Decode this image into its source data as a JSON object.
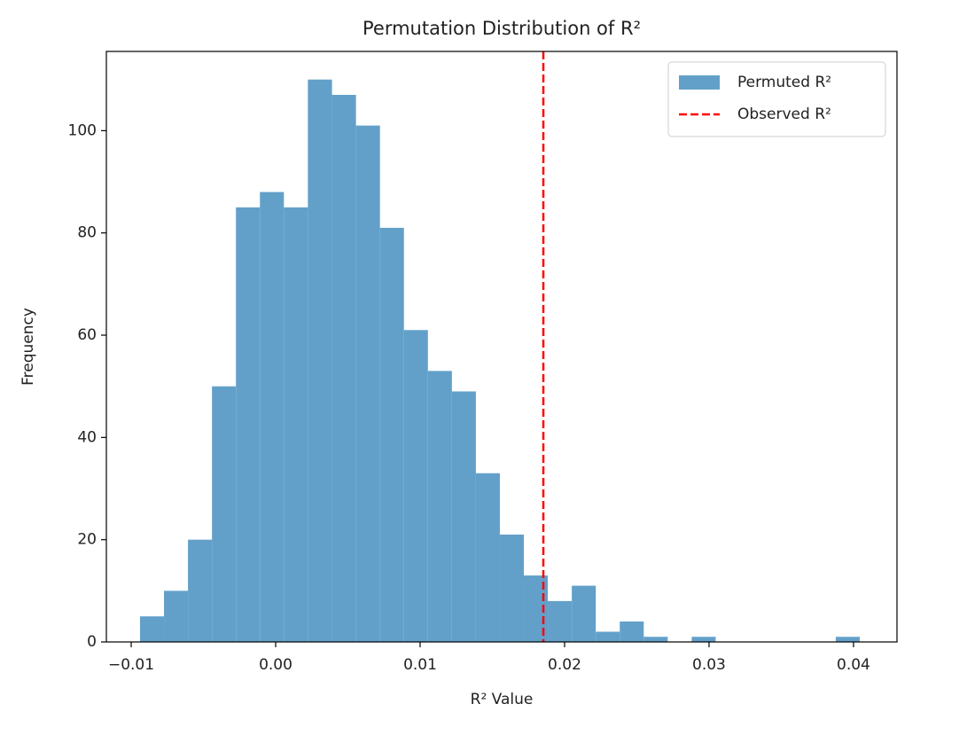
{
  "chart_data": {
    "type": "histogram",
    "title": "Permutation Distribution of R²",
    "xlabel": "R² Value",
    "ylabel": "Frequency",
    "bins": [
      -0.00939,
      -0.00773,
      -0.00607,
      -0.00441,
      -0.00275,
      -0.00109,
      0.00057,
      0.00223,
      0.0039,
      0.00556,
      0.00722,
      0.00888,
      0.01054,
      0.0122,
      0.01386,
      0.01552,
      0.01718,
      0.01884,
      0.0205,
      0.02216,
      0.02382,
      0.02548,
      0.02714,
      0.0288,
      0.03046,
      0.03212,
      0.03378,
      0.03544,
      0.0371,
      0.03877,
      0.04043
    ],
    "series": [
      {
        "name": "Permuted R²",
        "color": "#62a0ca",
        "values": [
          5,
          10,
          20,
          50,
          85,
          88,
          85,
          110,
          107,
          101,
          81,
          61,
          53,
          49,
          33,
          21,
          13,
          8,
          11,
          2,
          4,
          1,
          0,
          1,
          0,
          0,
          0,
          0,
          0,
          1
        ]
      }
    ],
    "vline": {
      "name": "Observed R²",
      "value": 0.01853,
      "color": "#ff0000",
      "style": "dashed"
    },
    "xlim": [
      -0.01172,
      0.04301
    ],
    "ylim": [
      0,
      115.5
    ],
    "xticks": [
      {
        "value": -0.01,
        "label": "−0.01"
      },
      {
        "value": 0,
        "label": "0.00"
      },
      0.01,
      0.02,
      0.03,
      0.04
    ],
    "yticks": [
      0,
      20,
      40,
      60,
      80,
      100
    ],
    "legend": "upper right"
  }
}
